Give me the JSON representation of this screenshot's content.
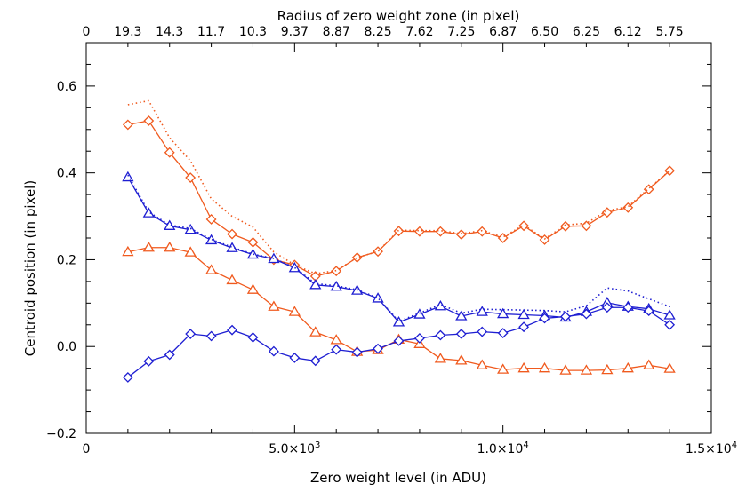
{
  "chart_data": {
    "type": "line",
    "xlabel": "Zero weight level (in ADU)",
    "ylabel": "Centroid position (in pixel)",
    "top_xlabel": "Radius of zero weight zone (in pixel)",
    "xlim": [
      0,
      15000
    ],
    "ylim": [
      -0.2,
      0.7
    ],
    "x_ticks": [
      {
        "value": 0,
        "label": "0"
      },
      {
        "value": 5000,
        "label": "5.0×10",
        "exp": "3"
      },
      {
        "value": 10000,
        "label": "1.0×10",
        "exp": "4"
      },
      {
        "value": 15000,
        "label": "1.5×10",
        "exp": "4"
      }
    ],
    "y_ticks": [
      {
        "value": -0.2,
        "label": "−0.2"
      },
      {
        "value": 0.0,
        "label": "0.0"
      },
      {
        "value": 0.2,
        "label": "0.2"
      },
      {
        "value": 0.4,
        "label": "0.4"
      },
      {
        "value": 0.6,
        "label": "0.6"
      }
    ],
    "top_ticks": [
      "0",
      "19.3",
      "14.3",
      "11.7",
      "10.3",
      "9.37",
      "8.87",
      "8.25",
      "7.62",
      "7.25",
      "6.87",
      "6.50",
      "6.25",
      "6.12",
      "5.75"
    ],
    "x": [
      1000,
      1500,
      2000,
      2500,
      3000,
      3500,
      4000,
      4500,
      5000,
      5500,
      6000,
      6500,
      7000,
      7500,
      8000,
      8500,
      9000,
      9500,
      10000,
      10500,
      11000,
      11500,
      12000,
      12500,
      13000,
      13500,
      14000
    ],
    "grid": false,
    "legend": "none",
    "series": [
      {
        "color": "#f05a1e",
        "marker": "diamond",
        "style": "solid",
        "values": [
          0.511,
          0.52,
          0.447,
          0.389,
          0.293,
          0.259,
          0.24,
          0.2,
          0.188,
          0.162,
          0.174,
          0.205,
          0.219,
          0.266,
          0.265,
          0.265,
          0.258,
          0.265,
          0.25,
          0.278,
          0.246,
          0.277,
          0.278,
          0.309,
          0.32,
          0.362,
          0.405
        ]
      },
      {
        "color": "#f05a1e",
        "marker": "none",
        "style": "dotted",
        "values": [
          0.557,
          0.566,
          0.481,
          0.428,
          0.34,
          0.3,
          0.275,
          0.218,
          0.188,
          0.168,
          0.175,
          0.205,
          0.219,
          0.268,
          0.267,
          0.267,
          0.26,
          0.267,
          0.252,
          0.28,
          0.248,
          0.28,
          0.284,
          0.313,
          0.322,
          0.364,
          0.405
        ]
      },
      {
        "color": "#f05a1e",
        "marker": "triangle",
        "style": "solid",
        "values": [
          0.218,
          0.228,
          0.228,
          0.217,
          0.176,
          0.153,
          0.131,
          0.092,
          0.08,
          0.033,
          0.015,
          -0.012,
          -0.008,
          0.016,
          0.006,
          -0.028,
          -0.032,
          -0.043,
          -0.053,
          -0.05,
          -0.05,
          -0.055,
          -0.055,
          -0.054,
          -0.05,
          -0.043,
          -0.051
        ]
      },
      {
        "color": "#1e1ed2",
        "marker": "triangle",
        "style": "solid",
        "values": [
          0.39,
          0.307,
          0.278,
          0.269,
          0.245,
          0.227,
          0.212,
          0.202,
          0.181,
          0.142,
          0.138,
          0.129,
          0.111,
          0.056,
          0.074,
          0.093,
          0.07,
          0.08,
          0.075,
          0.073,
          0.071,
          0.067,
          0.08,
          0.101,
          0.092,
          0.087,
          0.072
        ]
      },
      {
        "color": "#1e1ed2",
        "marker": "none",
        "style": "dotted",
        "values": [
          0.395,
          0.31,
          0.28,
          0.272,
          0.247,
          0.229,
          0.213,
          0.203,
          0.182,
          0.145,
          0.14,
          0.131,
          0.112,
          0.058,
          0.077,
          0.097,
          0.077,
          0.086,
          0.085,
          0.084,
          0.083,
          0.08,
          0.094,
          0.135,
          0.128,
          0.11,
          0.092
        ]
      },
      {
        "color": "#1e1ed2",
        "marker": "diamond",
        "style": "solid",
        "values": [
          -0.071,
          -0.034,
          -0.019,
          0.029,
          0.024,
          0.038,
          0.021,
          -0.011,
          -0.026,
          -0.033,
          -0.007,
          -0.013,
          -0.005,
          0.013,
          0.019,
          0.026,
          0.029,
          0.034,
          0.031,
          0.045,
          0.065,
          0.069,
          0.075,
          0.09,
          0.09,
          0.082,
          0.05
        ]
      }
    ]
  }
}
